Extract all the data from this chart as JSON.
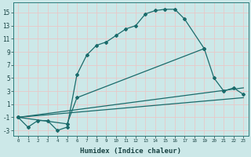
{
  "title": "",
  "xlabel": "Humidex (Indice chaleur)",
  "ylabel": "",
  "bg_color": "#cce8e8",
  "grid_color": "#e8c8c8",
  "line_color": "#1a6b6b",
  "xlim": [
    -0.5,
    23.5
  ],
  "ylim": [
    -3.8,
    16.5
  ],
  "xticks": [
    0,
    1,
    2,
    3,
    4,
    5,
    6,
    7,
    8,
    9,
    10,
    11,
    12,
    13,
    14,
    15,
    16,
    17,
    18,
    19,
    20,
    21,
    22,
    23
  ],
  "yticks": [
    -3,
    -1,
    1,
    3,
    5,
    7,
    9,
    11,
    13,
    15
  ],
  "curve1_x": [
    0,
    1,
    2,
    3,
    4,
    5,
    6,
    7,
    8,
    9,
    10,
    11,
    12,
    13,
    14,
    15,
    16,
    17,
    19
  ],
  "curve1_y": [
    -1,
    -2.5,
    -1.5,
    -1.5,
    -3,
    -2.5,
    5.5,
    8.5,
    10.0,
    10.5,
    11.5,
    12.5,
    13.0,
    14.8,
    15.3,
    15.5,
    15.5,
    14.0,
    9.5
  ],
  "curve2_x": [
    0,
    5,
    6,
    19,
    20,
    21,
    22,
    23
  ],
  "curve2_y": [
    -1,
    -2.0,
    2.0,
    9.5,
    5.0,
    3.0,
    3.5,
    2.5
  ],
  "line1_x": [
    0,
    23
  ],
  "line1_y": [
    -1,
    2.0
  ],
  "line2_x": [
    0,
    23
  ],
  "line2_y": [
    -1,
    3.5
  ],
  "marker": "D",
  "markersize": 2.0,
  "linewidth": 0.9
}
